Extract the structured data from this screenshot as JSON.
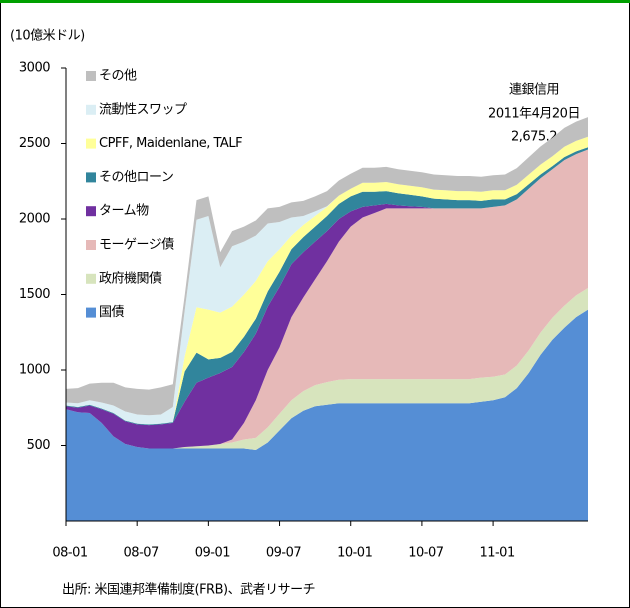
{
  "chart_data": {
    "type": "stacked_area",
    "y_label": "(10億米ドル)",
    "annotation": [
      "連銀信用",
      "2011年4月20日",
      "2,675.2"
    ],
    "source": "出所: 米国連邦準備制度(FRB)、武者リサーチ",
    "categories": [
      "08-01",
      null,
      null,
      null,
      null,
      null,
      "08-07",
      null,
      null,
      null,
      null,
      null,
      "09-01",
      null,
      null,
      null,
      null,
      null,
      "09-07",
      null,
      null,
      null,
      null,
      null,
      "10-01",
      null,
      null,
      null,
      null,
      null,
      "10-07",
      null,
      null,
      null,
      null,
      null,
      "11-01",
      null,
      null,
      null,
      null,
      null,
      null,
      null,
      null
    ],
    "ylim": [
      0,
      3000
    ],
    "yticks": [
      500,
      1000,
      1500,
      2000,
      2500,
      3000
    ],
    "series": [
      {
        "name": "国債",
        "color": "#558ed5",
        "values": [
          740,
          720,
          715,
          650,
          560,
          510,
          490,
          480,
          480,
          480,
          480,
          480,
          480,
          480,
          480,
          480,
          470,
          520,
          600,
          680,
          730,
          760,
          770,
          780,
          780,
          780,
          780,
          780,
          780,
          780,
          780,
          780,
          780,
          780,
          780,
          790,
          800,
          820,
          880,
          980,
          1100,
          1200,
          1280,
          1350,
          1400
        ]
      },
      {
        "name": "政府機関債",
        "color": "#d7e4bd",
        "values": [
          0,
          0,
          0,
          0,
          0,
          0,
          0,
          0,
          0,
          0,
          10,
          15,
          20,
          30,
          40,
          60,
          80,
          100,
          110,
          120,
          130,
          140,
          150,
          155,
          160,
          160,
          160,
          160,
          160,
          160,
          160,
          160,
          160,
          160,
          160,
          160,
          155,
          150,
          150,
          150,
          148,
          146,
          145,
          144,
          143
        ]
      },
      {
        "name": "モーゲージ債",
        "color": "#e6b9b8",
        "values": [
          0,
          0,
          0,
          0,
          0,
          0,
          0,
          0,
          0,
          0,
          0,
          0,
          0,
          0,
          20,
          110,
          250,
          380,
          440,
          550,
          620,
          700,
          800,
          915,
          1010,
          1070,
          1100,
          1130,
          1130,
          1130,
          1130,
          1130,
          1130,
          1130,
          1130,
          1120,
          1125,
          1120,
          1100,
          1070,
          1022,
          984,
          965,
          936,
          917
        ]
      },
      {
        "name": "ターム物",
        "color": "#7030a0",
        "values": [
          20,
          30,
          50,
          90,
          150,
          150,
          150,
          155,
          160,
          170,
          300,
          420,
          450,
          470,
          480,
          470,
          440,
          420,
          400,
          350,
          300,
          250,
          200,
          150,
          100,
          70,
          50,
          30,
          20,
          15,
          10,
          0,
          0,
          0,
          0,
          0,
          0,
          0,
          0,
          0,
          0,
          0,
          0,
          0,
          0
        ]
      },
      {
        "name": "その他ローン",
        "color": "#31859c",
        "values": [
          5,
          5,
          5,
          5,
          5,
          5,
          5,
          5,
          5,
          5,
          200,
          200,
          120,
          100,
          100,
          100,
          100,
          100,
          100,
          100,
          100,
          100,
          100,
          100,
          100,
          100,
          90,
          85,
          80,
          75,
          70,
          65,
          60,
          55,
          55,
          50,
          50,
          40,
          35,
          30,
          25,
          20,
          20,
          18,
          15
        ]
      },
      {
        "name": "CPFF, Maidenlane, TALF",
        "color": "#ffff99",
        "values": [
          0,
          0,
          0,
          0,
          0,
          0,
          0,
          0,
          0,
          0,
          100,
          300,
          330,
          300,
          300,
          280,
          250,
          200,
          150,
          90,
          80,
          70,
          60,
          55,
          50,
          60,
          60,
          60,
          60,
          60,
          60,
          60,
          60,
          60,
          60,
          60,
          60,
          60,
          62,
          64,
          65,
          66,
          68,
          69,
          70
        ]
      },
      {
        "name": "流動性スワップ",
        "color": "#dbeef4",
        "values": [
          20,
          25,
          30,
          40,
          50,
          60,
          60,
          60,
          60,
          100,
          300,
          580,
          620,
          300,
          400,
          350,
          300,
          250,
          180,
          120,
          60,
          30,
          5,
          0,
          0,
          0,
          0,
          0,
          0,
          0,
          0,
          0,
          0,
          0,
          0,
          0,
          0,
          0,
          0,
          0,
          0,
          0,
          0,
          0,
          0
        ]
      },
      {
        "name": "その他",
        "color": "#bfbfbf",
        "values": [
          90,
          100,
          110,
          130,
          150,
          160,
          170,
          170,
          180,
          150,
          100,
          130,
          130,
          100,
          100,
          100,
          100,
          100,
          100,
          100,
          100,
          100,
          100,
          100,
          100,
          100,
          100,
          100,
          100,
          100,
          100,
          100,
          100,
          100,
          100,
          100,
          100,
          105,
          110,
          115,
          120,
          122,
          125,
          128,
          130
        ]
      }
    ]
  }
}
